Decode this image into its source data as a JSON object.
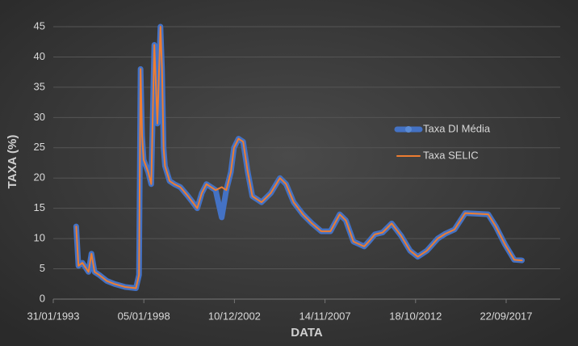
{
  "chart_data": {
    "type": "line",
    "x_label": "DATA",
    "y_label": "TAXA (%)",
    "x": [
      "1994-05-01",
      "1994-06-15",
      "1994-09-01",
      "1995-01-01",
      "1995-03-01",
      "1995-05-01",
      "1995-08-01",
      "1996-01-01",
      "1996-06-01",
      "1997-01-01",
      "1997-08-01",
      "1997-10-01",
      "1997-11-01",
      "1997-12-01",
      "1998-01-01",
      "1998-04-01",
      "1998-06-01",
      "1998-08-01",
      "1998-10-01",
      "1998-12-01",
      "1999-01-01",
      "1999-02-01",
      "1999-03-01",
      "1999-06-01",
      "1999-09-01",
      "2000-01-01",
      "2000-06-01",
      "2000-09-01",
      "2000-12-01",
      "2001-03-01",
      "2001-06-01",
      "2001-12-01",
      "2002-04-01",
      "2002-07-01",
      "2002-10-01",
      "2002-12-01",
      "2003-03-01",
      "2003-06-01",
      "2003-09-01",
      "2003-12-01",
      "2004-06-01",
      "2004-12-01",
      "2005-06-01",
      "2005-10-01",
      "2006-03-01",
      "2006-09-01",
      "2007-03-01",
      "2007-09-01",
      "2008-03-01",
      "2008-09-01",
      "2009-01-01",
      "2009-06-01",
      "2010-01-01",
      "2010-04-01",
      "2010-08-01",
      "2011-01-01",
      "2011-07-01",
      "2012-01-01",
      "2012-07-01",
      "2012-12-01",
      "2013-06-01",
      "2014-01-01",
      "2014-06-01",
      "2014-12-01",
      "2015-07-01",
      "2016-10-01",
      "2017-03-01",
      "2017-09-01",
      "2018-03-01",
      "2018-08-01"
    ],
    "series": [
      {
        "name": "Taxa DI Média",
        "color": "#4472c4",
        "values": [
          12,
          5.5,
          6,
          4.5,
          7.5,
          4.5,
          4,
          3,
          2.5,
          2,
          1.8,
          4,
          38,
          27,
          23,
          21,
          19,
          42,
          29,
          45,
          38,
          25,
          22,
          19.5,
          19,
          18.5,
          17,
          16,
          15,
          17.5,
          19,
          18,
          13.5,
          18,
          21,
          25,
          26.5,
          26,
          21,
          17,
          16,
          17.5,
          20,
          19,
          16,
          14,
          12.5,
          11.2,
          11.2,
          14,
          13,
          9.5,
          8.7,
          9.5,
          10.7,
          11,
          12.5,
          10.5,
          8,
          7,
          8,
          10,
          10.8,
          11.5,
          14.2,
          14,
          12,
          9,
          6.5,
          6.4
        ]
      },
      {
        "name": "Taxa SELIC",
        "color": "#ed7d31",
        "values": [
          12,
          5.5,
          6,
          4.5,
          7.5,
          4.5,
          4,
          3,
          2.5,
          2,
          1.8,
          4,
          38,
          27,
          23,
          21,
          19,
          42,
          29,
          45,
          38,
          25,
          22,
          19.5,
          19,
          18.5,
          17,
          16,
          15,
          17.5,
          19,
          18,
          18.5,
          18,
          21,
          25,
          26.5,
          26,
          21,
          17,
          16,
          17.5,
          20,
          19,
          16,
          14,
          12.5,
          11.2,
          11.2,
          14,
          13,
          9.5,
          8.7,
          9.5,
          10.7,
          11,
          12.5,
          10.5,
          8,
          7,
          8,
          10,
          10.8,
          11.5,
          14.2,
          14,
          12,
          9,
          6.5,
          6.4
        ]
      }
    ],
    "xlim": [
      "1993-01-31",
      "2020-09-01"
    ],
    "xticks": [
      {
        "value": "1993-01-31",
        "label": "31/01/1993"
      },
      {
        "value": "1998-01-05",
        "label": "05/01/1998"
      },
      {
        "value": "2002-12-10",
        "label": "10/12/2002"
      },
      {
        "value": "2007-11-14",
        "label": "14/11/2007"
      },
      {
        "value": "2012-10-18",
        "label": "18/10/2012"
      },
      {
        "value": "2017-09-22",
        "label": "22/09/2017"
      }
    ],
    "ylim": [
      0,
      45
    ],
    "yticks": [
      0,
      5,
      10,
      15,
      20,
      25,
      30,
      35,
      40,
      45
    ],
    "grid": true,
    "legend": "right"
  }
}
